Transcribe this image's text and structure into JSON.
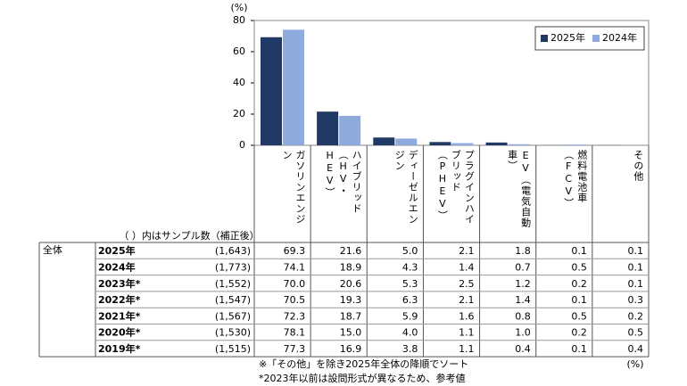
{
  "chart_data": {
    "type": "bar",
    "unit": "(%)",
    "categories": [
      "ガソリンエンジン",
      "ハイブリッド（HV・HEV）",
      "ディーゼルエンジン",
      "プラグインハイブリッド（PHEV）",
      "EV（電気自動車）",
      "燃料電池車（FCV）",
      "その他"
    ],
    "series": [
      {
        "name": "2025年",
        "color": "#203864",
        "values": [
          69.3,
          21.6,
          5.0,
          2.1,
          1.8,
          0.1,
          0.1
        ]
      },
      {
        "name": "2024年",
        "color": "#8faadc",
        "values": [
          74.1,
          18.9,
          4.3,
          1.4,
          0.7,
          0.5,
          0.1
        ]
      }
    ],
    "ylim": [
      0,
      80
    ],
    "yticks": [
      0,
      20,
      40,
      60,
      80
    ],
    "legend": "upper-right"
  },
  "table": {
    "caption": "（ ）内はサンプル数（補正後）",
    "group": "全体",
    "rows": [
      {
        "year": "2025年",
        "n": "(1,643)",
        "values": [
          "69.3",
          "21.6",
          "5.0",
          "2.1",
          "1.8",
          "0.1",
          "0.1"
        ]
      },
      {
        "year": "2024年",
        "n": "(1,773)",
        "values": [
          "74.1",
          "18.9",
          "4.3",
          "1.4",
          "0.7",
          "0.5",
          "0.1"
        ]
      },
      {
        "year": "2023年*",
        "n": "(1,552)",
        "values": [
          "70.0",
          "20.6",
          "5.3",
          "2.5",
          "1.2",
          "0.2",
          "0.1"
        ]
      },
      {
        "year": "2022年*",
        "n": "(1,547)",
        "values": [
          "70.5",
          "19.3",
          "6.3",
          "2.1",
          "1.4",
          "0.1",
          "0.3"
        ]
      },
      {
        "year": "2021年*",
        "n": "(1,567)",
        "values": [
          "72.3",
          "18.7",
          "5.9",
          "1.6",
          "0.8",
          "0.5",
          "0.2"
        ]
      },
      {
        "year": "2020年*",
        "n": "(1,530)",
        "values": [
          "78.1",
          "15.0",
          "4.0",
          "1.1",
          "1.0",
          "0.2",
          "0.5"
        ]
      },
      {
        "year": "2019年*",
        "n": "(1,515)",
        "values": [
          "77.3",
          "16.9",
          "3.8",
          "1.1",
          "0.4",
          "0.1",
          "0.4"
        ]
      }
    ]
  },
  "notes": [
    "※「その他」を除き2025年全体の降順でソート",
    "*2023年以前は設問形式が異なるため、参考値"
  ],
  "unit": "(%)"
}
